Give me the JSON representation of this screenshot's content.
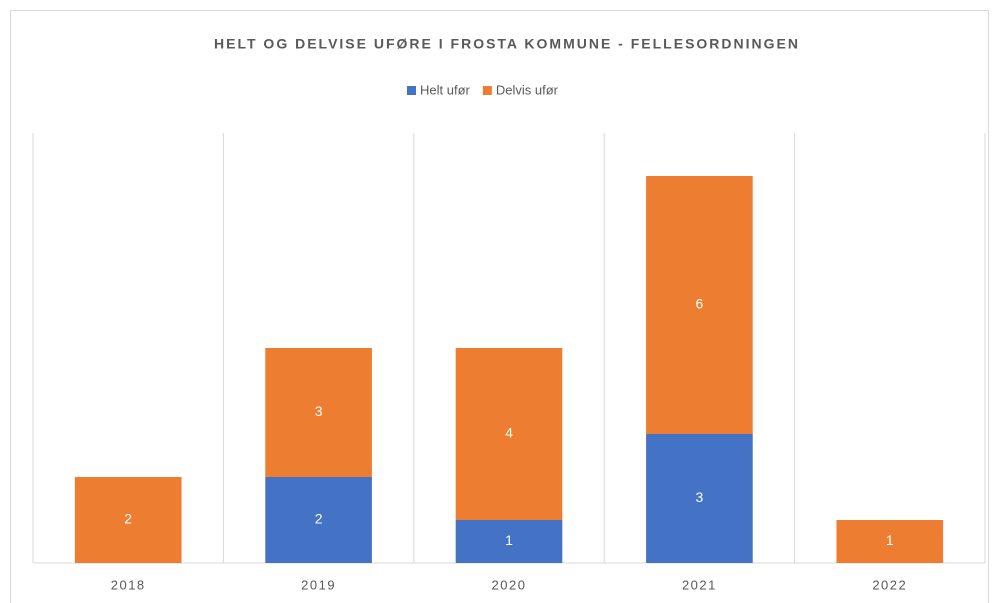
{
  "chart_data": {
    "type": "stacked_bar",
    "title": "HELT OG DELVISE UFØRE I FROSTA KOMMUNE - FELLESORDNINGEN",
    "categories": [
      "2018",
      "2019",
      "2020",
      "2021",
      "2022"
    ],
    "series": [
      {
        "name": "Helt ufør",
        "color": "#4472c4",
        "values": [
          null,
          2,
          1,
          3,
          null
        ]
      },
      {
        "name": "Delvis ufør",
        "color": "#ed7d31",
        "values": [
          2,
          3,
          4,
          6,
          1
        ]
      }
    ],
    "ylim": [
      0,
      10
    ],
    "legend": "top"
  }
}
